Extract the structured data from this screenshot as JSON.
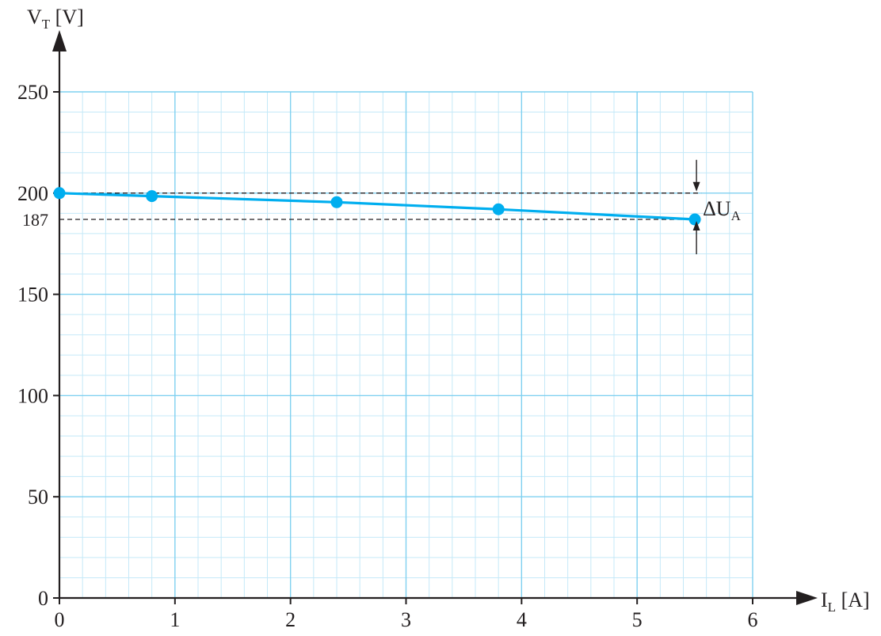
{
  "chart_data": {
    "type": "line",
    "title": "",
    "xlabel": {
      "main": "I",
      "sub": "L",
      "unit": " [A]"
    },
    "ylabel": {
      "main": "V",
      "sub": "T",
      "unit": " [V]"
    },
    "xlim": [
      0,
      6
    ],
    "ylim": [
      0,
      250
    ],
    "x_ticks": [
      0,
      1,
      2,
      3,
      4,
      5,
      6
    ],
    "y_ticks": [
      0,
      50,
      100,
      150,
      200,
      250
    ],
    "x_tick_labels": [
      "0",
      "1",
      "2",
      "3",
      "4",
      "5",
      "6"
    ],
    "y_tick_labels": [
      "0",
      "50",
      "100",
      "150",
      "200",
      "250"
    ],
    "grid": true,
    "series": [
      {
        "x": [
          0,
          0.8,
          2.4,
          3.8,
          5.5
        ],
        "y": [
          200,
          198.5,
          195.5,
          192,
          187
        ]
      }
    ],
    "reference_lines": [
      {
        "y": 200,
        "x_end": 5.5,
        "label": ""
      },
      {
        "y": 187,
        "x_end": 5.5,
        "label": "187"
      }
    ],
    "annotation": {
      "text_main": "ΔU",
      "text_sub": "A",
      "x": 5.5,
      "y_top": 200,
      "y_bottom": 187
    },
    "colors": {
      "series": "#00aeef",
      "grid_major": "#7fd0f0",
      "grid_minor": "#c5e9f8",
      "axis": "#231f20"
    }
  }
}
